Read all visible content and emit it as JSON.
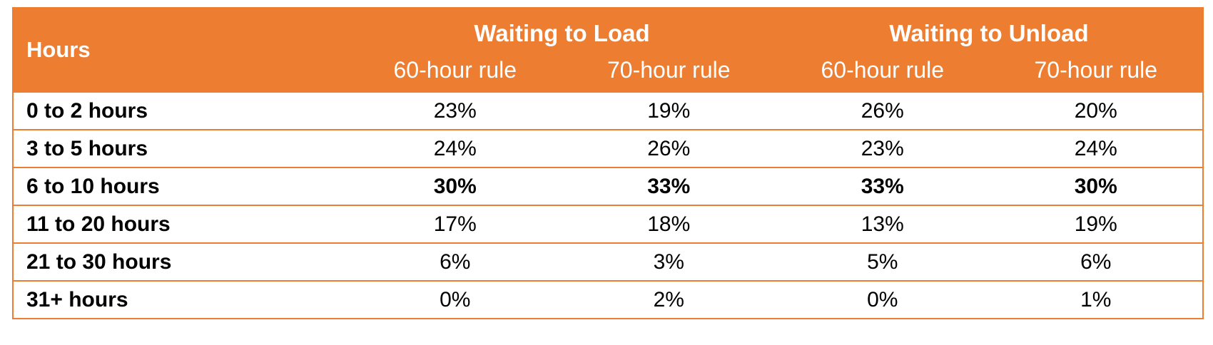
{
  "table": {
    "hours_header": "Hours",
    "groups": [
      {
        "label": "Waiting to Load",
        "rules": [
          "60-hour rule",
          "70-hour rule"
        ]
      },
      {
        "label": "Waiting to Unload",
        "rules": [
          "60-hour rule",
          "70-hour rule"
        ]
      }
    ],
    "rows": [
      {
        "label": "0 to 2 hours",
        "values": [
          "23%",
          "19%",
          "26%",
          "20%"
        ]
      },
      {
        "label": "3 to 5 hours",
        "values": [
          "24%",
          "26%",
          "23%",
          "24%"
        ]
      },
      {
        "label": "6 to 10 hours",
        "values": [
          "30%",
          "33%",
          "33%",
          "30%"
        ]
      },
      {
        "label": "11 to 20 hours",
        "values": [
          "17%",
          "18%",
          "13%",
          "19%"
        ]
      },
      {
        "label": "21 to 30 hours",
        "values": [
          "6%",
          "3%",
          "5%",
          "6%"
        ]
      },
      {
        "label": "31+ hours",
        "values": [
          "0%",
          "2%",
          "0%",
          "1%"
        ]
      }
    ],
    "highlight_row_index": 2
  },
  "colors": {
    "header_bg": "#ED7D31",
    "header_text": "#FFFFFF",
    "border": "#ED7D31"
  }
}
